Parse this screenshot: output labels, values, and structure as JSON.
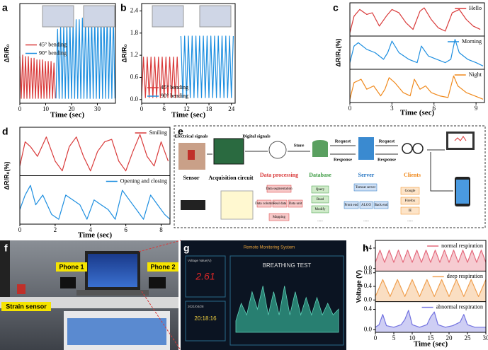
{
  "chart_data": [
    {
      "panel": "a",
      "type": "line",
      "xlabel": "Time (sec)",
      "ylabel": "ΔR/R₀",
      "xlim": [
        0,
        37
      ],
      "xticks": [
        0,
        10,
        20,
        30
      ],
      "ylim": [
        0,
        6.2
      ],
      "legend": "center left",
      "series": [
        {
          "name": "45° bending",
          "color": "#d93a3a",
          "x": [
            0,
            0.55,
            1.1,
            1.65,
            2.2,
            2.75,
            3.3,
            3.85,
            4.4,
            4.95,
            5.5,
            6.05,
            6.6,
            7.15,
            7.7,
            8.25,
            8.8,
            9.35,
            9.9,
            10.45,
            11,
            11.55,
            12.1,
            12.65,
            13.2,
            13.75
          ],
          "values": [
            2.9,
            0.3,
            3.0,
            0.3,
            2.9,
            0.3,
            2.9,
            0.3,
            2.8,
            0.3,
            2.8,
            0.3,
            2.7,
            0.3,
            2.7,
            0.3,
            2.7,
            0.3,
            2.6,
            0.3,
            2.6,
            0.3,
            2.6,
            0.3,
            2.5,
            0.3
          ]
        },
        {
          "name": "90° bending",
          "color": "#1e8fe0",
          "x": [
            14,
            14.6,
            15.2,
            15.8,
            16.4,
            17,
            17.6,
            18.2,
            18.8,
            19.4,
            20,
            20.6,
            21.2,
            21.8,
            22.4,
            23,
            23.6,
            24.2,
            24.8,
            25.4,
            26,
            26.6,
            27.2,
            27.8,
            28.4,
            29,
            29.6,
            30.2,
            30.8,
            31.4,
            32,
            32.6,
            33.2,
            33.8,
            34.4,
            35,
            35.6,
            36.2,
            36.8
          ],
          "values": [
            0.3,
            4.6,
            0.3,
            4.8,
            0.3,
            4.9,
            0.3,
            5.0,
            0.3,
            5.1,
            0.3,
            5.1,
            0.3,
            5.2,
            0.3,
            5.2,
            0.3,
            5.3,
            0.3,
            5.3,
            0.3,
            5.3,
            0.3,
            5.4,
            0.3,
            5.4,
            0.3,
            5.4,
            0.3,
            5.5,
            0.3,
            5.5,
            0.3,
            5.5,
            0.3,
            5.5,
            0.3,
            5.5,
            0.3
          ]
        }
      ]
    },
    {
      "panel": "b",
      "type": "line",
      "xlabel": "Time (sec)",
      "ylabel": "ΔR/R₀",
      "xlim": [
        0,
        25
      ],
      "xticks": [
        0,
        6,
        12,
        18,
        24
      ],
      "ylim": [
        -0.1,
        2.6
      ],
      "yticks": [
        {
          "value": 0,
          "label": "0.0"
        },
        0.6,
        1.2,
        1.8,
        2.4
      ],
      "legend": "lower left",
      "series": [
        {
          "name": "45° bending",
          "color": "#d93a3a",
          "x": [
            0,
            0.5,
            1,
            1.5,
            2,
            2.5,
            3,
            3.5,
            4,
            4.5,
            5,
            5.5,
            6,
            6.5,
            7,
            7.5,
            8,
            8.5,
            9,
            9.5,
            10
          ],
          "values": [
            0.1,
            1.15,
            0.05,
            1.15,
            0.05,
            1.15,
            0.05,
            1.15,
            0.05,
            1.15,
            0.05,
            1.15,
            0.05,
            1.15,
            0.05,
            1.15,
            0.05,
            1.15,
            0.05,
            1.15,
            0.05
          ]
        },
        {
          "name": "90° bending",
          "color": "#1e8fe0",
          "x": [
            10.5,
            11,
            11.5,
            12,
            12.5,
            13,
            13.5,
            14,
            14.5,
            15,
            15.5,
            16,
            16.5,
            17,
            17.5,
            18,
            18.5,
            19,
            19.5,
            20,
            20.5,
            21,
            21.5,
            22,
            22.5,
            23,
            23.5,
            24,
            24.5
          ],
          "values": [
            1.72,
            0.05,
            1.72,
            0.05,
            1.72,
            0.05,
            1.72,
            0.05,
            1.72,
            0.05,
            1.72,
            0.05,
            1.72,
            0.05,
            1.72,
            0.05,
            1.72,
            0.05,
            1.72,
            0.05,
            1.72,
            0.05,
            1.72,
            0.05,
            1.72,
            0.05,
            1.72,
            0.05,
            1.72
          ]
        }
      ]
    },
    {
      "panel": "c",
      "type": "line",
      "xlabel": "Time (sec)",
      "ylabel": "ΔR/R₀(%)",
      "xlim": [
        0,
        9.6
      ],
      "xticks": [
        0,
        3,
        6,
        9
      ],
      "legend": "upper right",
      "panels": [
        {
          "ylim": [
            0,
            10
          ],
          "series": [
            {
              "name": "Hello",
              "color": "#d93a3a",
              "x": [
                0,
                0.3,
                0.7,
                1.2,
                1.6,
                2.1,
                2.6,
                3.0,
                3.5,
                4.0,
                4.5,
                5.0,
                5.3,
                5.8,
                6.3,
                6.8,
                7.3,
                7.8,
                8.3,
                8.8,
                9.3
              ],
              "values": [
                1,
                6,
                8,
                6.5,
                7,
                3,
                6,
                8,
                7,
                4,
                2,
                7.5,
                8.5,
                5,
                2.5,
                1.5,
                7,
                8,
                5,
                3,
                2
              ]
            }
          ]
        },
        {
          "ylim": [
            0,
            10
          ],
          "series": [
            {
              "name": "Morning",
              "color": "#1e8fe0",
              "x": [
                0,
                0.3,
                0.6,
                1.2,
                1.8,
                2.4,
                2.7,
                3.0,
                3.5,
                4.2,
                4.8,
                5.1,
                5.6,
                6.2,
                6.8,
                7.2,
                7.5,
                7.8,
                8.4,
                9.0,
                9.5
              ],
              "values": [
                2,
                7,
                8,
                6,
                5,
                3,
                5,
                8.5,
                5,
                3,
                2,
                7,
                4,
                3,
                2,
                3,
                9,
                5,
                3,
                2,
                1
              ]
            }
          ]
        },
        {
          "ylim": [
            0,
            10
          ],
          "series": [
            {
              "name": "Night",
              "color": "#f0891c",
              "x": [
                0,
                0.3,
                0.8,
                1.2,
                1.7,
                2.2,
                2.5,
                2.8,
                3.2,
                3.8,
                4.3,
                4.6,
                5.0,
                5.4,
                5.8,
                6.4,
                7.0,
                7.4,
                7.7,
                8.3,
                8.9,
                9.5
              ],
              "values": [
                1,
                6,
                7,
                4,
                5,
                2,
                4,
                7.5,
                6,
                3,
                2,
                7,
                4,
                5,
                3,
                2,
                1.5,
                8,
                5,
                3,
                2,
                1
              ]
            }
          ]
        }
      ]
    },
    {
      "panel": "d",
      "type": "line",
      "xlabel": "Time (sec)",
      "ylabel": "ΔR/R₀(%)",
      "xlim": [
        0,
        8.5
      ],
      "xticks": [
        0,
        2,
        4,
        6,
        8
      ],
      "legend": "upper right",
      "panels": [
        {
          "ylim": [
            0,
            10
          ],
          "series": [
            {
              "name": "Smiling",
              "color": "#d93a3a",
              "x": [
                0,
                0.3,
                0.6,
                1.0,
                1.5,
                2.0,
                2.4,
                2.8,
                3.2,
                3.6,
                4.0,
                4.4,
                4.8,
                5.2,
                5.6,
                6.0,
                6.4,
                6.8,
                7.2,
                7.6,
                8.0,
                8.4
              ],
              "values": [
                2,
                7,
                6,
                4,
                8,
                3,
                1,
                6,
                8,
                4,
                1,
                5,
                7,
                7.5,
                3,
                1,
                5,
                8.5,
                4,
                2,
                7,
                3
              ]
            }
          ]
        },
        {
          "ylim": [
            0,
            10
          ],
          "series": [
            {
              "name": "Opening and closing",
              "color": "#1e8fe0",
              "x": [
                0,
                0.3,
                0.6,
                0.9,
                1.3,
                1.8,
                2.2,
                2.6,
                3.0,
                3.4,
                3.8,
                4.2,
                4.6,
                5.0,
                5.4,
                5.8,
                6.2,
                6.6,
                7.0,
                7.4,
                7.8,
                8.2,
                8.5
              ],
              "values": [
                3,
                6,
                8,
                4,
                6,
                2,
                1,
                6,
                5,
                4,
                1,
                5,
                4,
                3,
                1,
                7,
                5,
                3,
                1,
                6,
                4,
                2,
                1
              ]
            }
          ]
        }
      ]
    },
    {
      "panel": "g",
      "type": "area",
      "title": "Remote Monitoring System",
      "readout_label": "Voltage Value(V)",
      "readout": 2.61,
      "date": "2021/04/28",
      "time": "20:18:16",
      "plot_title": "BREATHING TEST",
      "color": "#2f9a86",
      "ylim": [
        0,
        10
      ],
      "values": [
        2,
        5,
        3,
        7,
        4,
        8,
        3,
        7,
        3,
        8,
        3,
        7,
        3,
        6,
        3,
        6,
        3,
        5,
        3,
        4
      ]
    },
    {
      "panel": "h",
      "type": "line",
      "fill": true,
      "xlabel": "Time (sec)",
      "ylabel": "Voltage (V)",
      "xlim": [
        0,
        30
      ],
      "xticks": [
        0,
        5,
        10,
        15,
        20,
        25,
        30
      ],
      "legend": "upper right",
      "panels": [
        {
          "ylim": [
            -0.05,
            0.55
          ],
          "yticks": [
            {
              "value": 0,
              "label": "0.0"
            },
            0.4
          ],
          "series": [
            {
              "name": "normal respiration",
              "color": "#e46a7c",
              "x": [
                0,
                1.25,
                2.5,
                3.75,
                5,
                6.25,
                7.5,
                8.75,
                10,
                11.25,
                12.5,
                13.75,
                15,
                16.25,
                17.5,
                18.75,
                20,
                21.25,
                22.5,
                23.75,
                25,
                26.25,
                27.5,
                28.75,
                30
              ],
              "values": [
                0.12,
                0.36,
                0.12,
                0.36,
                0.12,
                0.36,
                0.12,
                0.36,
                0.12,
                0.36,
                0.12,
                0.36,
                0.12,
                0.36,
                0.12,
                0.36,
                0.12,
                0.36,
                0.12,
                0.36,
                0.12,
                0.36,
                0.12,
                0.36,
                0.12
              ]
            }
          ]
        },
        {
          "ylim": [
            -0.05,
            0.85
          ],
          "yticks": [
            {
              "value": 0,
              "label": "0.0"
            },
            0.4,
            0.8
          ],
          "series": [
            {
              "name": "deep respiration",
              "color": "#f0a050",
              "x": [
                0,
                2,
                4,
                6,
                8,
                10,
                12,
                14,
                16,
                18,
                20,
                22,
                24,
                26,
                28,
                30
              ],
              "values": [
                0.1,
                0.6,
                0.1,
                0.6,
                0.1,
                0.6,
                0.1,
                0.6,
                0.1,
                0.6,
                0.1,
                0.6,
                0.1,
                0.6,
                0.1,
                0.6
              ]
            }
          ]
        },
        {
          "ylim": [
            -0.05,
            0.55
          ],
          "yticks": [
            {
              "value": 0,
              "label": "0.0"
            },
            0.4
          ],
          "series": [
            {
              "name": "abnormal respiration",
              "color": "#7272e0",
              "x": [
                0,
                1,
                2,
                3,
                5,
                7,
                8,
                9,
                10,
                12,
                14,
                15,
                16,
                17,
                19,
                21,
                23,
                24,
                25,
                27,
                30
              ],
              "values": [
                0.05,
                0.1,
                0.3,
                0.08,
                0.05,
                0.1,
                0.2,
                0.38,
                0.1,
                0.05,
                0.1,
                0.25,
                0.35,
                0.1,
                0.05,
                0.08,
                0.15,
                0.3,
                0.1,
                0.05,
                0.05
              ]
            }
          ]
        }
      ]
    }
  ],
  "diagram": {
    "panel": "e",
    "flow_labels": [
      "Electrical signals",
      "Digital signals",
      "Store",
      "Request",
      "Response",
      "Request",
      "Response"
    ],
    "stages": [
      "Sensor",
      "Acquisition circuit",
      "Data processing",
      "Database",
      "Server",
      "Clients"
    ],
    "processing": [
      "Data segmentation",
      "Data column",
      "Real data",
      "Data unit",
      "Mapping"
    ],
    "database": [
      "Query",
      "Read",
      "Modify",
      "......"
    ],
    "server": [
      "Tomcat server",
      "Front end",
      "ALGO",
      "Back end",
      "......"
    ],
    "clients": [
      "Google",
      "Firefox",
      "IE",
      "......"
    ]
  },
  "photo": {
    "panel": "f",
    "labels": [
      "Phone 1",
      "Phone 2",
      "Strain sensor"
    ]
  }
}
